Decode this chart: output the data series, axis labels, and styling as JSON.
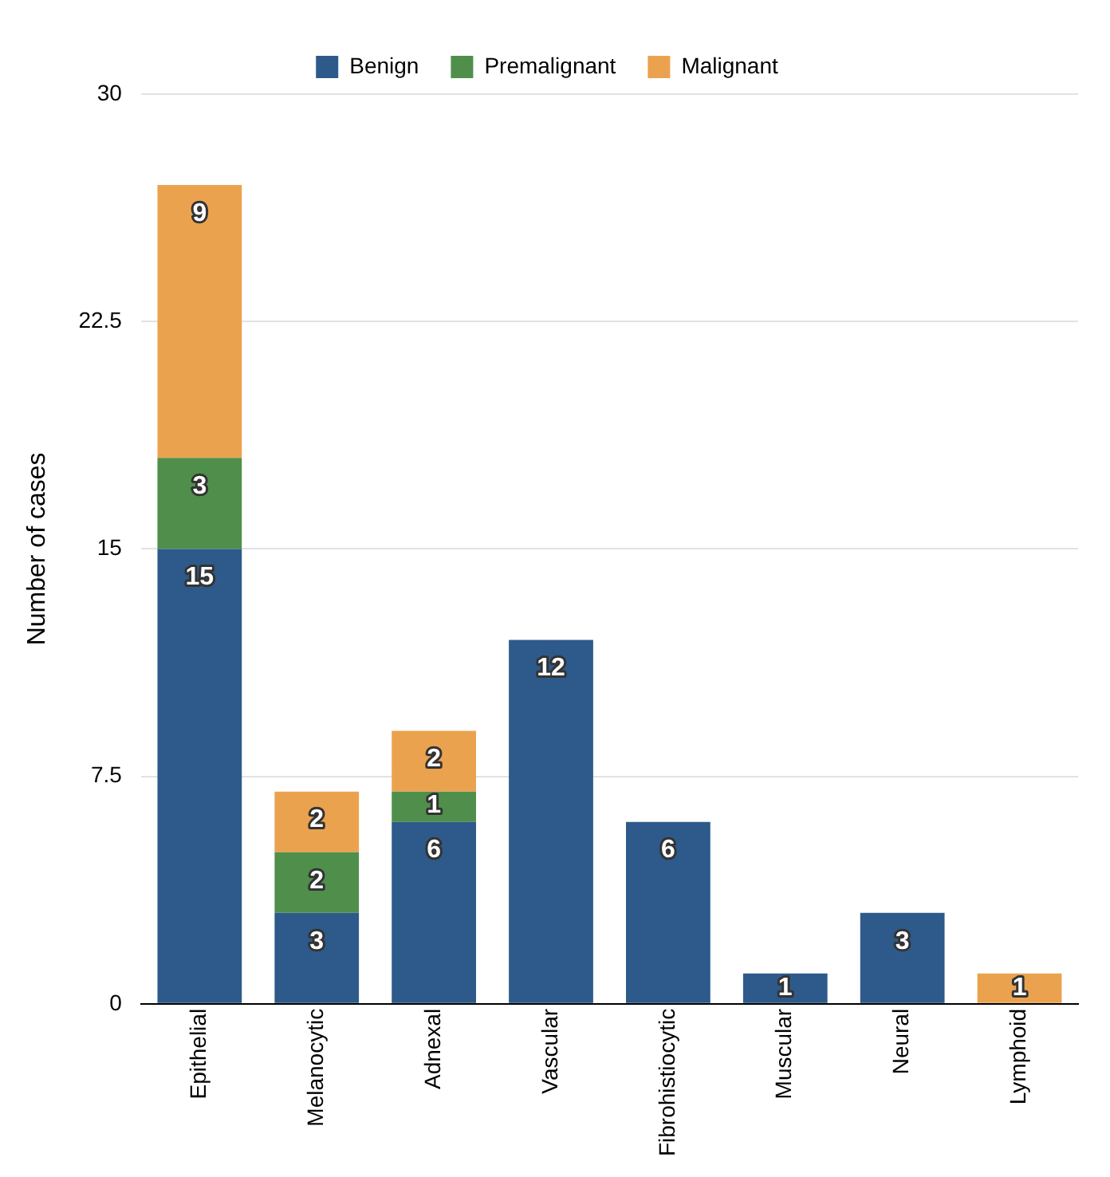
{
  "chart_data": {
    "type": "bar",
    "stacked": true,
    "ylabel": "Number of cases",
    "categories": [
      "Epithelial",
      "Melanocytic",
      "Adnexal",
      "Vascular",
      "Fibrohistiocytic",
      "Muscular",
      "Neural",
      "Lymphoid"
    ],
    "series": [
      {
        "name": "Benign",
        "color": "#2d5a8a",
        "values": [
          15,
          3,
          6,
          12,
          6,
          1,
          3,
          null
        ]
      },
      {
        "name": "Premalignant",
        "color": "#4f8f4b",
        "values": [
          3,
          2,
          1,
          null,
          null,
          null,
          null,
          null
        ]
      },
      {
        "name": "Malignant",
        "color": "#eba24f",
        "values": [
          9,
          2,
          2,
          null,
          null,
          null,
          null,
          1
        ]
      }
    ],
    "ylim": [
      0,
      30
    ],
    "yticks": [
      0,
      7.5,
      15,
      22.5,
      30
    ],
    "grid": "y",
    "legend": "top",
    "data_labels": true
  }
}
